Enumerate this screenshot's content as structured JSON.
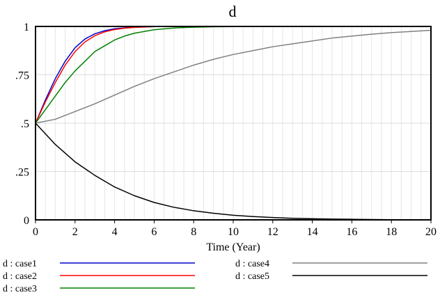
{
  "chart_data": {
    "type": "line",
    "title": "d",
    "xlabel": "Time (Year)",
    "ylabel": "",
    "xlim": [
      0,
      20
    ],
    "ylim": [
      0,
      1
    ],
    "x_ticks": [
      0,
      2,
      4,
      6,
      8,
      10,
      12,
      14,
      16,
      18,
      20
    ],
    "x_tick_labels": [
      "0",
      "2",
      "4",
      "6",
      "8",
      "10",
      "12",
      "14",
      "16",
      "18",
      "20"
    ],
    "y_ticks": [
      0,
      0.25,
      0.5,
      0.75,
      1
    ],
    "y_tick_labels": [
      "0",
      ".25",
      ".5",
      ".75",
      "1"
    ],
    "grid": true,
    "legend_position": "bottom",
    "series": [
      {
        "name": "d : case1",
        "color": "#0000cc",
        "x": [
          0,
          0.5,
          1,
          1.5,
          2,
          2.5,
          3,
          3.5,
          4,
          4.5,
          5,
          6,
          7,
          8,
          9,
          10,
          12,
          14,
          16,
          18,
          20
        ],
        "values": [
          0.5,
          0.62,
          0.73,
          0.82,
          0.89,
          0.935,
          0.962,
          0.978,
          0.988,
          0.993,
          0.996,
          0.999,
          1,
          1,
          1,
          1,
          1,
          1,
          1,
          1,
          1
        ]
      },
      {
        "name": "d : case2",
        "color": "#ff0000",
        "x": [
          0,
          0.5,
          1,
          1.5,
          2,
          2.5,
          3,
          3.5,
          4,
          4.5,
          5,
          6,
          7,
          8,
          9,
          10,
          12,
          14,
          16,
          18,
          20
        ],
        "values": [
          0.5,
          0.61,
          0.71,
          0.8,
          0.87,
          0.92,
          0.952,
          0.972,
          0.984,
          0.991,
          0.995,
          0.999,
          1,
          1,
          1,
          1,
          1,
          1,
          1,
          1,
          1
        ]
      },
      {
        "name": "d : case3",
        "color": "#008000",
        "x": [
          0,
          0.5,
          1,
          1.5,
          2,
          2.5,
          3,
          3.5,
          4,
          4.5,
          5,
          6,
          7,
          8,
          9,
          10,
          12,
          14,
          16,
          18,
          20
        ],
        "values": [
          0.5,
          0.57,
          0.64,
          0.71,
          0.77,
          0.82,
          0.87,
          0.9,
          0.93,
          0.95,
          0.965,
          0.983,
          0.992,
          0.996,
          0.998,
          0.999,
          1,
          1,
          1,
          1,
          1
        ]
      },
      {
        "name": "d : case4",
        "color": "#808080",
        "x": [
          0,
          1,
          2,
          3,
          4,
          5,
          6,
          7,
          8,
          9,
          10,
          11,
          12,
          13,
          14,
          15,
          16,
          17,
          18,
          19,
          20
        ],
        "values": [
          0.5,
          0.52,
          0.56,
          0.6,
          0.645,
          0.69,
          0.73,
          0.765,
          0.8,
          0.83,
          0.855,
          0.875,
          0.895,
          0.91,
          0.925,
          0.94,
          0.95,
          0.96,
          0.968,
          0.974,
          0.98
        ]
      },
      {
        "name": "d : case5",
        "color": "#000000",
        "x": [
          0,
          1,
          2,
          3,
          4,
          5,
          6,
          7,
          8,
          9,
          10,
          11,
          12,
          13,
          14,
          15,
          16,
          17,
          18,
          19,
          20
        ],
        "values": [
          0.5,
          0.39,
          0.3,
          0.23,
          0.17,
          0.125,
          0.09,
          0.065,
          0.047,
          0.034,
          0.024,
          0.017,
          0.012,
          0.008,
          0.006,
          0.004,
          0.003,
          0.002,
          0.001,
          0.001,
          0.001
        ]
      }
    ]
  }
}
